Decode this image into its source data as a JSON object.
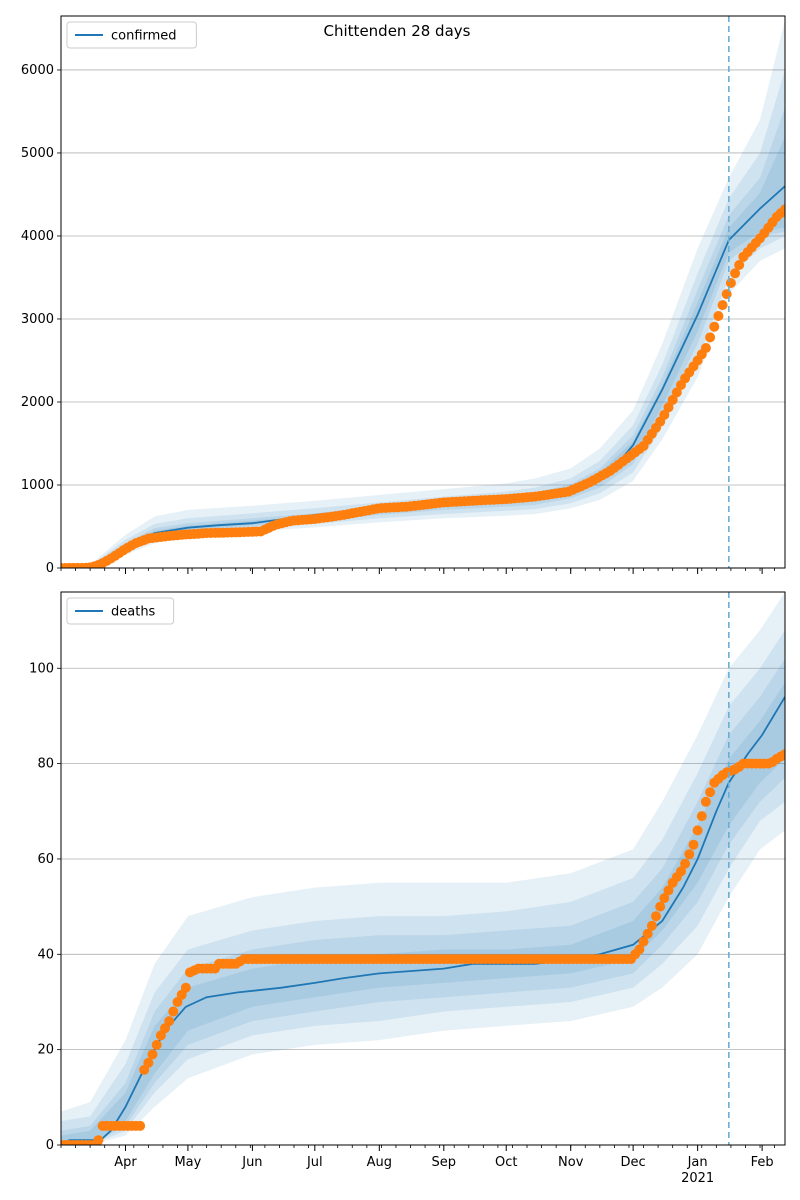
{
  "chart_data": [
    {
      "type": "line",
      "title": "Chittenden 28 days",
      "ylim": [
        0,
        6650
      ],
      "yticks": [
        0,
        1000,
        2000,
        3000,
        4000,
        5000,
        6000
      ],
      "grid": "y",
      "legend": "top-left",
      "forecast_start": "2021-01-16",
      "series": [
        {
          "name": "confirmed",
          "kind": "model-median",
          "color": "#1f77b4",
          "points": [
            [
              "2020-03-01",
              0
            ],
            [
              "2020-03-15",
              10
            ],
            [
              "2020-03-25",
              120
            ],
            [
              "2020-04-05",
              300
            ],
            [
              "2020-04-15",
              420
            ],
            [
              "2020-05-01",
              485
            ],
            [
              "2020-05-15",
              515
            ],
            [
              "2020-06-01",
              540
            ],
            [
              "2020-06-15",
              585
            ],
            [
              "2020-07-01",
              640
            ],
            [
              "2020-07-15",
              680
            ],
            [
              "2020-08-01",
              730
            ],
            [
              "2020-09-01",
              790
            ],
            [
              "2020-10-01",
              830
            ],
            [
              "2020-10-15",
              870
            ],
            [
              "2020-11-01",
              970
            ],
            [
              "2020-11-15",
              1130
            ],
            [
              "2020-11-25",
              1300
            ],
            [
              "2020-12-01",
              1480
            ],
            [
              "2020-12-15",
              2150
            ],
            [
              "2021-01-01",
              3050
            ],
            [
              "2021-01-16",
              3950
            ],
            [
              "2021-01-31",
              4330
            ],
            [
              "2021-02-12",
              4600
            ]
          ],
          "bands": {
            "dates": [
              "2020-03-01",
              "2020-03-15",
              "2020-04-01",
              "2020-04-15",
              "2020-05-01",
              "2020-06-01",
              "2020-07-01",
              "2020-08-01",
              "2020-09-01",
              "2020-10-01",
              "2020-10-15",
              "2020-11-01",
              "2020-11-15",
              "2020-12-01",
              "2020-12-15",
              "2021-01-01",
              "2021-01-16",
              "2021-01-31",
              "2021-02-12"
            ],
            "ranges": [
              {
                "low": [
                  0,
                  0,
                  160,
                  300,
                  380,
                  440,
                  490,
                  550,
                  600,
                  630,
                  650,
                  720,
                  820,
                  1050,
                  1550,
                  2300,
                  3300,
                  3700,
                  3850
                ],
                "high": [
                  0,
                  40,
                  400,
                  620,
                  700,
                  750,
                  810,
                  880,
                  950,
                  1020,
                  1080,
                  1200,
                  1440,
                  1900,
                  2700,
                  3850,
                  4700,
                  5400,
                  6600
                ]
              },
              {
                "low": [
                  0,
                  0,
                  190,
                  330,
                  410,
                  470,
                  530,
                  600,
                  650,
                  690,
                  710,
                  780,
                  900,
                  1150,
                  1700,
                  2500,
                  3500,
                  3850,
                  4000
                ],
                "high": [
                  0,
                  30,
                  340,
                  530,
                  600,
                  660,
                  720,
                  790,
                  860,
                  920,
                  970,
                  1080,
                  1290,
                  1720,
                  2450,
                  3550,
                  4450,
                  5000,
                  6000
                ]
              },
              {
                "low": [
                  0,
                  0,
                  210,
                  360,
                  440,
                  500,
                  570,
                  640,
                  700,
                  740,
                  760,
                  840,
                  970,
                  1250,
                  1850,
                  2700,
                  3700,
                  4000,
                  4050
                ],
                "high": [
                  0,
                  20,
                  300,
                  480,
                  540,
                  600,
                  660,
                  740,
                  800,
                  860,
                  910,
                  1010,
                  1200,
                  1600,
                  2300,
                  3350,
                  4250,
                  4700,
                  5550
                ]
              },
              {
                "low": [
                  0,
                  0,
                  230,
                  380,
                  460,
                  520,
                  600,
                  680,
                  740,
                  780,
                  810,
                  890,
                  1030,
                  1330,
                  1950,
                  2850,
                  3800,
                  4050,
                  4100
                ],
                "high": [
                  0,
                  15,
                  270,
                  450,
                  510,
                  570,
                  630,
                  710,
                  770,
                  830,
                  880,
                  970,
                  1150,
                  1530,
                  2200,
                  3200,
                  4100,
                  4520,
                  5200
                ]
              }
            ]
          }
        },
        {
          "name": "",
          "kind": "observed",
          "color": "#ff7f0e",
          "points": [
            [
              "2020-03-01",
              0
            ],
            [
              "2020-03-14",
              2
            ],
            [
              "2020-03-18",
              25
            ],
            [
              "2020-03-22",
              70
            ],
            [
              "2020-03-26",
              130
            ],
            [
              "2020-04-01",
              230
            ],
            [
              "2020-04-06",
              300
            ],
            [
              "2020-04-12",
              355
            ],
            [
              "2020-04-20",
              380
            ],
            [
              "2020-04-28",
              400
            ],
            [
              "2020-05-10",
              420
            ],
            [
              "2020-05-25",
              430
            ],
            [
              "2020-06-05",
              440
            ],
            [
              "2020-06-12",
              520
            ],
            [
              "2020-06-20",
              570
            ],
            [
              "2020-07-01",
              590
            ],
            [
              "2020-07-15",
              640
            ],
            [
              "2020-08-01",
              720
            ],
            [
              "2020-08-15",
              740
            ],
            [
              "2020-09-01",
              790
            ],
            [
              "2020-09-15",
              810
            ],
            [
              "2020-10-01",
              830
            ],
            [
              "2020-10-15",
              860
            ],
            [
              "2020-10-31",
              920
            ],
            [
              "2020-11-10",
              1030
            ],
            [
              "2020-11-20",
              1170
            ],
            [
              "2020-11-28",
              1320
            ],
            [
              "2020-12-06",
              1470
            ],
            [
              "2020-12-15",
              1800
            ],
            [
              "2020-12-25",
              2250
            ],
            [
              "2021-01-01",
              2500
            ],
            [
              "2021-01-05",
              2650
            ],
            [
              "2021-01-12",
              3100
            ],
            [
              "2021-01-18",
              3500
            ],
            [
              "2021-01-23",
              3750
            ],
            [
              "2021-02-01",
              4000
            ],
            [
              "2021-02-08",
              4230
            ],
            [
              "2021-02-12",
              4320
            ]
          ]
        }
      ]
    },
    {
      "type": "line",
      "xlabels": [
        "Apr",
        "May",
        "Jun",
        "Jul",
        "Aug",
        "Sep",
        "Oct",
        "Nov",
        "Dec",
        "Jan",
        "Feb"
      ],
      "xyear": "2021",
      "ylim": [
        0,
        116
      ],
      "yticks": [
        0,
        20,
        40,
        60,
        80,
        100
      ],
      "grid": "y",
      "legend": "top-left",
      "forecast_start": "2021-01-16",
      "series": [
        {
          "name": "deaths",
          "kind": "model-median",
          "color": "#1f77b4",
          "points": [
            [
              "2020-03-01",
              0
            ],
            [
              "2020-03-05",
              1
            ],
            [
              "2020-03-20",
              1
            ],
            [
              "2020-03-25",
              3
            ],
            [
              "2020-04-01",
              8
            ],
            [
              "2020-04-10",
              16
            ],
            [
              "2020-04-20",
              24
            ],
            [
              "2020-04-30",
              29
            ],
            [
              "2020-05-10",
              31
            ],
            [
              "2020-05-25",
              32
            ],
            [
              "2020-06-15",
              33
            ],
            [
              "2020-07-01",
              34
            ],
            [
              "2020-07-15",
              35
            ],
            [
              "2020-08-01",
              36
            ],
            [
              "2020-09-01",
              37
            ],
            [
              "2020-09-15",
              38
            ],
            [
              "2020-10-15",
              38
            ],
            [
              "2020-11-01",
              39
            ],
            [
              "2020-11-15",
              40
            ],
            [
              "2020-12-01",
              42
            ],
            [
              "2020-12-15",
              47
            ],
            [
              "2020-12-25",
              54
            ],
            [
              "2021-01-01",
              60
            ],
            [
              "2021-01-10",
              70
            ],
            [
              "2021-01-16",
              76
            ],
            [
              "2021-01-25",
              82
            ],
            [
              "2021-02-01",
              86
            ],
            [
              "2021-02-12",
              94
            ]
          ],
          "bands": {
            "dates": [
              "2020-03-01",
              "2020-03-15",
              "2020-04-01",
              "2020-04-15",
              "2020-05-01",
              "2020-06-01",
              "2020-07-01",
              "2020-08-01",
              "2020-09-01",
              "2020-10-01",
              "2020-11-01",
              "2020-12-01",
              "2020-12-15",
              "2021-01-01",
              "2021-01-16",
              "2021-01-31",
              "2021-02-12"
            ],
            "ranges": [
              {
                "low": [
                  0,
                  0,
                  2,
                  8,
                  14,
                  19,
                  21,
                  22,
                  24,
                  25,
                  26,
                  29,
                  33,
                  40,
                  52,
                  62,
                  66
                ],
                "high": [
                  7,
                  9,
                  22,
                  38,
                  48,
                  52,
                  54,
                  55,
                  55,
                  55,
                  57,
                  62,
                  72,
                  86,
                  100,
                  108,
                  116
                ]
              },
              {
                "low": [
                  0,
                  0,
                  3,
                  11,
                  18,
                  23,
                  25,
                  26,
                  28,
                  29,
                  30,
                  33,
                  38,
                  46,
                  58,
                  68,
                  72
                ],
                "high": [
                  5,
                  6,
                  17,
                  32,
                  41,
                  45,
                  47,
                  48,
                  48,
                  49,
                  51,
                  56,
                  64,
                  78,
                  92,
                  100,
                  108
                ]
              },
              {
                "low": [
                  0,
                  0,
                  4,
                  13,
                  21,
                  26,
                  28,
                  30,
                  31,
                  32,
                  33,
                  36,
                  42,
                  51,
                  63,
                  72,
                  77
                ],
                "high": [
                  3,
                  4,
                  13,
                  28,
                  37,
                  41,
                  43,
                  44,
                  44,
                  45,
                  46,
                  51,
                  58,
                  72,
                  86,
                  94,
                  102
                ]
              },
              {
                "low": [
                  0,
                  0,
                  5,
                  15,
                  24,
                  29,
                  31,
                  33,
                  34,
                  35,
                  36,
                  39,
                  45,
                  55,
                  67,
                  76,
                  81
                ],
                "high": [
                  2,
                  3,
                  11,
                  25,
                  33,
                  37,
                  39,
                  40,
                  41,
                  41,
                  42,
                  47,
                  54,
                  67,
                  81,
                  89,
                  97
                ]
              }
            ]
          }
        },
        {
          "name": "",
          "kind": "observed",
          "color": "#ff7f0e",
          "points": [
            [
              "2020-03-01",
              0
            ],
            [
              "2020-03-17",
              0
            ],
            [
              "2020-03-18",
              1
            ],
            [
              "2020-03-20",
              1
            ],
            [
              "2020-03-21",
              4
            ],
            [
              "2020-04-08",
              4
            ],
            [
              "2020-04-09",
              15
            ],
            [
              "2020-04-13",
              18
            ],
            [
              "2020-04-18",
              23
            ],
            [
              "2020-04-22",
              26
            ],
            [
              "2020-04-26",
              30
            ],
            [
              "2020-04-30",
              33
            ],
            [
              "2020-05-01",
              36
            ],
            [
              "2020-05-06",
              37
            ],
            [
              "2020-05-15",
              37
            ],
            [
              "2020-05-16",
              38
            ],
            [
              "2020-05-25",
              38
            ],
            [
              "2020-05-27",
              39
            ],
            [
              "2020-11-30",
              39
            ],
            [
              "2020-12-04",
              41
            ],
            [
              "2020-12-10",
              46
            ],
            [
              "2020-12-15",
              51
            ],
            [
              "2020-12-20",
              55
            ],
            [
              "2020-12-25",
              58
            ],
            [
              "2020-12-30",
              63
            ],
            [
              "2021-01-01",
              66
            ],
            [
              "2021-01-05",
              72
            ],
            [
              "2021-01-09",
              76
            ],
            [
              "2021-01-14",
              78
            ],
            [
              "2021-01-20",
              79
            ],
            [
              "2021-01-23",
              80
            ],
            [
              "2021-02-05",
              80
            ],
            [
              "2021-02-08",
              81
            ],
            [
              "2021-02-12",
              82
            ]
          ]
        }
      ]
    }
  ]
}
